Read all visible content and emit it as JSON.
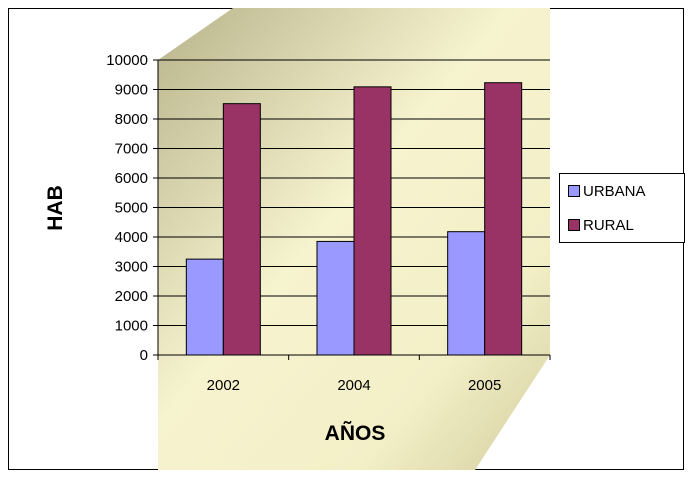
{
  "chart_data": {
    "type": "bar",
    "title": "",
    "xlabel": "AÑOS",
    "ylabel": "HAB",
    "categories": [
      "2002",
      "2004",
      "2005"
    ],
    "series": [
      {
        "name": "URBANA",
        "values": [
          3250,
          3850,
          4180
        ],
        "color": "#9999ff"
      },
      {
        "name": "RURAL",
        "values": [
          8520,
          9090,
          9230
        ],
        "color": "#993366"
      }
    ],
    "ylim": [
      0,
      10000
    ],
    "yticks": [
      "0",
      "1000",
      "2000",
      "3000",
      "4000",
      "5000",
      "6000",
      "7000",
      "8000",
      "9000",
      "10000"
    ],
    "grid": true,
    "legend_position": "right",
    "colors": {
      "wall": "#f4f1c8",
      "wall_shadow": "#b3ad7e",
      "grid": "#000000"
    }
  }
}
